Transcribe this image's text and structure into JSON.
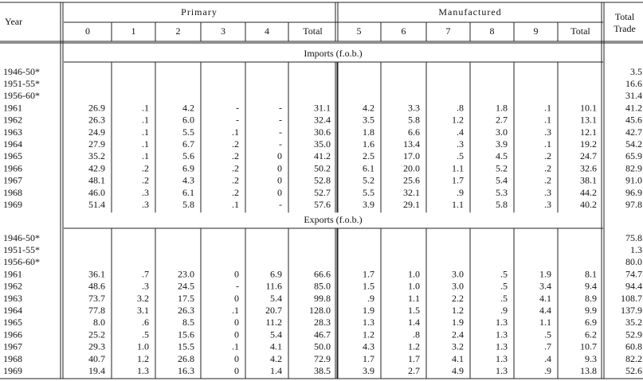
{
  "header": {
    "year": "Year",
    "primary": "Primary",
    "manufactured": "Manufactured",
    "total_trade": [
      "Total",
      "Trade"
    ],
    "columns": [
      "0",
      "1",
      "2",
      "3",
      "4",
      "Total",
      "5",
      "6",
      "7",
      "8",
      "9",
      "Total"
    ]
  },
  "sections": [
    {
      "title": "Imports (f.o.b.)",
      "rows": [
        [
          "1946-50*",
          null,
          null,
          null,
          null,
          null,
          null,
          null,
          null,
          null,
          null,
          null,
          null,
          "3.5"
        ],
        [
          "1951-55*",
          null,
          null,
          null,
          null,
          null,
          null,
          null,
          null,
          null,
          null,
          null,
          null,
          "16.6"
        ],
        [
          "1956-60*",
          null,
          null,
          null,
          null,
          null,
          null,
          null,
          null,
          null,
          null,
          null,
          null,
          "31.4"
        ],
        [
          "1961",
          "26.9",
          ".1",
          "4.2",
          "-",
          "-",
          "31.1",
          "4.2",
          "3.3",
          ".8",
          "1.8",
          ".1",
          "10.1",
          "41.2"
        ],
        [
          "1962",
          "26.3",
          ".1",
          "6.0",
          "-",
          "-",
          "32.4",
          "3.5",
          "5.8",
          "1.2",
          "2.7",
          ".1",
          "13.1",
          "45.6"
        ],
        [
          "1963",
          "24.9",
          ".1",
          "5.5",
          ".1",
          "-",
          "30.6",
          "1.8",
          "6.6",
          ".4",
          "3.0",
          ".3",
          "12.1",
          "42.7"
        ],
        [
          "1964",
          "27.9",
          ".1",
          "6.7",
          ".2",
          "-",
          "35.0",
          "1.6",
          "13.4",
          ".3",
          "3.9",
          ".1",
          "19.2",
          "54.2"
        ],
        [
          "1965",
          "35.2",
          ".1",
          "5.6",
          ".2",
          "0",
          "41.2",
          "2.5",
          "17.0",
          ".5",
          "4.5",
          ".2",
          "24.7",
          "65.9"
        ],
        [
          "1966",
          "42.9",
          ".2",
          "6.9",
          ".2",
          "0",
          "50.2",
          "6.1",
          "20.0",
          "1.1",
          "5.2",
          ".2",
          "32.6",
          "82.9"
        ],
        [
          "1967",
          "48.1",
          ".2",
          "4.3",
          ".2",
          "0",
          "52.8",
          "5.2",
          "25.6",
          "1.7",
          "5.4",
          ".2",
          "38.1",
          "91.0"
        ],
        [
          "1968",
          "46.0",
          ".3",
          "6.1",
          ".2",
          "0",
          "52.7",
          "5.5",
          "32.1",
          ".9",
          "5.3",
          ".3",
          "44.2",
          "96.9"
        ],
        [
          "1969",
          "51.4",
          ".3",
          "5.8",
          ".1",
          "-",
          "57.6",
          "3.9",
          "29.1",
          "1.1",
          "5.8",
          ".3",
          "40.2",
          "97.8"
        ]
      ]
    },
    {
      "title": "Exports (f.o.b.)",
      "rows": [
        [
          "1946-50*",
          null,
          null,
          null,
          null,
          null,
          null,
          null,
          null,
          null,
          null,
          null,
          null,
          "75.8"
        ],
        [
          "1951-55*",
          null,
          null,
          null,
          null,
          null,
          null,
          null,
          null,
          null,
          null,
          null,
          null,
          "1.3"
        ],
        [
          "1956-60*",
          null,
          null,
          null,
          null,
          null,
          null,
          null,
          null,
          null,
          null,
          null,
          null,
          "80.0"
        ],
        [
          "1961",
          "36.1",
          ".7",
          "23.0",
          "0",
          "6.9",
          "66.6",
          "1.7",
          "1.0",
          "3.0",
          ".5",
          "1.9",
          "8.1",
          "74.7"
        ],
        [
          "1962",
          "48.6",
          ".3",
          "24.5",
          "-",
          "11.6",
          "85.0",
          "1.5",
          "1.0",
          "3.0",
          ".5",
          "3.4",
          "9.4",
          "94.4"
        ],
        [
          "1963",
          "73.7",
          "3.2",
          "17.5",
          "0",
          "5.4",
          "99.8",
          ".9",
          "1.1",
          "2.2",
          ".5",
          "4.1",
          "8.9",
          "108.7"
        ],
        [
          "1964",
          "77.8",
          "3.1",
          "26.3",
          ".1",
          "20.7",
          "128.0",
          "1.9",
          "1.5",
          "1.2",
          ".9",
          "4.4",
          "9.9",
          "137.9"
        ],
        [
          "1965",
          "8.0",
          ".6",
          "8.5",
          "0",
          "11.2",
          "28.3",
          "1.3",
          "1.4",
          "1.9",
          "1.3",
          "1.1",
          "6.9",
          "35.2"
        ],
        [
          "1966",
          "25.2",
          ".5",
          "15.6",
          "0",
          "5.4",
          "46.7",
          "1.2",
          ".8",
          "2.4",
          "1.3",
          ".5",
          "6.2",
          "52.9"
        ],
        [
          "1967",
          "29.3",
          "1.0",
          "15.5",
          ".1",
          "4.1",
          "50.0",
          "4.3",
          "1.2",
          "3.2",
          "1.3",
          ".7",
          "10.7",
          "60.8"
        ],
        [
          "1968",
          "40.7",
          "1.2",
          "26.8",
          "0",
          "4.2",
          "72.9",
          "1.7",
          "1.7",
          "4.1",
          "1.3",
          ".4",
          "9.3",
          "82.2"
        ],
        [
          "1969",
          "19.4",
          "1.3",
          "16.3",
          "0",
          "1.4",
          "38.5",
          "3.9",
          "2.7",
          "4.9",
          "1.3",
          ".9",
          "13.8",
          "52.6"
        ]
      ]
    }
  ]
}
